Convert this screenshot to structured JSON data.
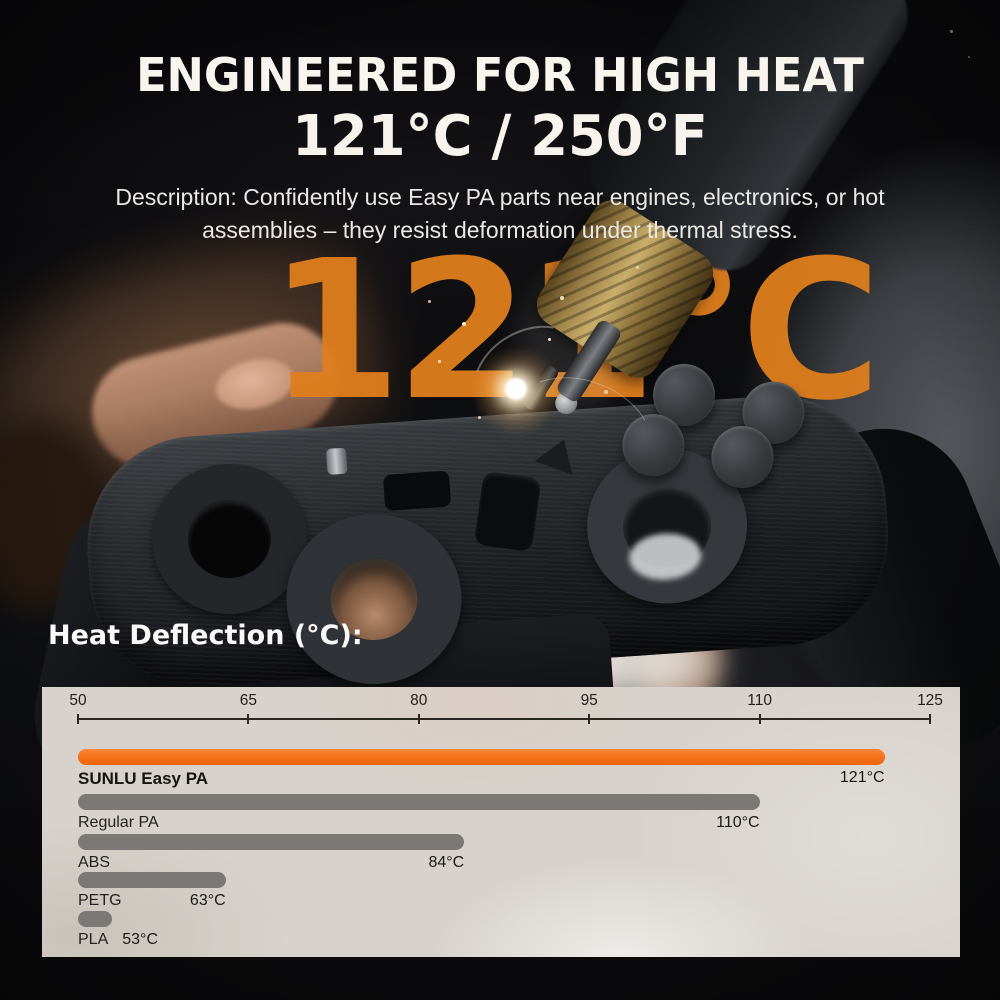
{
  "header": {
    "title": "ENGINEERED FOR HIGH HEAT",
    "temperature": "121°C / 250°F",
    "description_line1": "Description: Confidently use Easy PA parts near engines, electronics, or hot",
    "description_line2": "assemblies – they resist deformation under thermal stress."
  },
  "watermark": "121°C",
  "section_label": "Heat Deflection (°C):",
  "chart_data": {
    "type": "bar",
    "orientation": "horizontal",
    "title": "Heat Deflection (°C)",
    "xlabel": "",
    "ylabel": "",
    "axis": {
      "min": 50,
      "max": 125,
      "ticks": [
        50,
        65,
        80,
        95,
        110,
        125
      ]
    },
    "series": [
      {
        "name": "SUNLU Easy PA",
        "value": 121,
        "label": "121°C",
        "emphasis": true
      },
      {
        "name": "Regular PA",
        "value": 110,
        "label": "110°C",
        "emphasis": false
      },
      {
        "name": "ABS",
        "value": 84,
        "label": "84°C",
        "emphasis": false
      },
      {
        "name": "PETG",
        "value": 63,
        "label": "63°C",
        "emphasis": false
      },
      {
        "name": "PLA",
        "value": 53,
        "label": "53°C",
        "emphasis": false
      }
    ],
    "colors": {
      "highlight": "#F4731B",
      "default": "#7B7876",
      "panel_bg": "#D7D2CB",
      "watermark_orange": "#DF7E1D"
    },
    "legend": false,
    "grid": false
  }
}
